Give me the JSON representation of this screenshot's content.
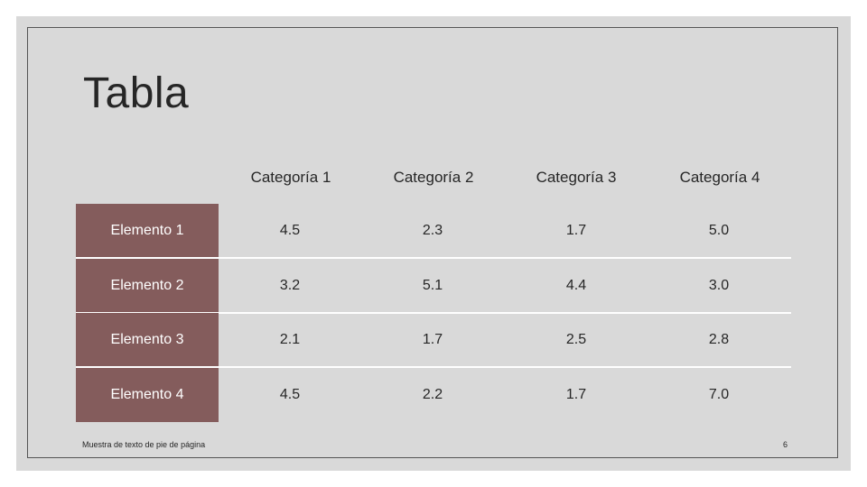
{
  "slide": {
    "title": "Tabla",
    "footer": "Muestra de texto de pie de página",
    "page_number": "6"
  },
  "table": {
    "headers": [
      "Categoría 1",
      "Categoría 2",
      "Categoría 3",
      "Categoría 4"
    ],
    "rows": [
      {
        "label": "Elemento 1",
        "values": [
          "4.5",
          "2.3",
          "1.7",
          "5.0"
        ]
      },
      {
        "label": "Elemento 2",
        "values": [
          "3.2",
          "5.1",
          "4.4",
          "3.0"
        ]
      },
      {
        "label": "Elemento 3",
        "values": [
          "2.1",
          "1.7",
          "2.5",
          "2.8"
        ]
      },
      {
        "label": "Elemento 4",
        "values": [
          "4.5",
          "2.2",
          "1.7",
          "7.0"
        ]
      }
    ]
  },
  "colors": {
    "background": "#d9d9d9",
    "row_label_fill": "#845c5c",
    "text": "#262626"
  }
}
